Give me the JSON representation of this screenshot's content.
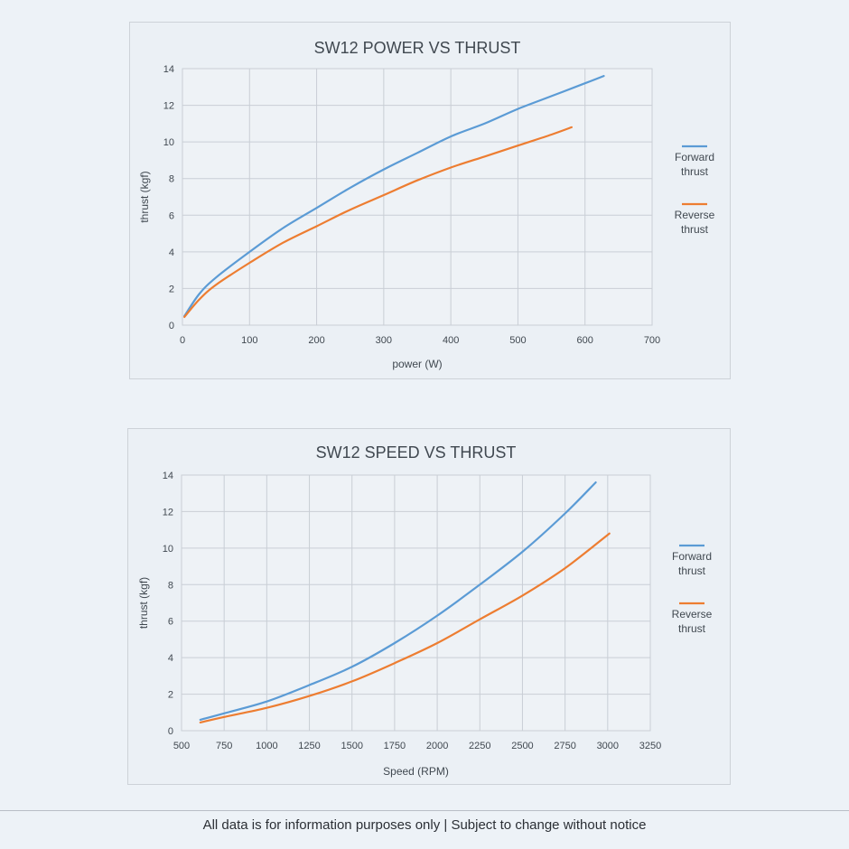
{
  "footer": {
    "disclaimer": "All data is for information purposes only | Subject to change without notice"
  },
  "colors": {
    "forward": "#5b9bd5",
    "reverse": "#ed7d31",
    "grid": "#c9ced5",
    "text": "#404850"
  },
  "chart_data": [
    {
      "type": "line",
      "title": "SW12 POWER VS THRUST",
      "xlabel": "power (W)",
      "ylabel": "thrust (kgf)",
      "xlim": [
        0,
        700
      ],
      "ylim": [
        0,
        14
      ],
      "xticks": [
        0,
        100,
        200,
        300,
        400,
        500,
        600,
        700
      ],
      "yticks": [
        0,
        2,
        4,
        6,
        8,
        10,
        12,
        14
      ],
      "grid": true,
      "legend": "right",
      "series": [
        {
          "name": "Forward thrust",
          "x": [
            3,
            25,
            50,
            100,
            150,
            200,
            250,
            300,
            350,
            400,
            450,
            500,
            550,
            600,
            628
          ],
          "y": [
            0.5,
            1.7,
            2.6,
            4.0,
            5.3,
            6.4,
            7.5,
            8.5,
            9.4,
            10.3,
            11.0,
            11.8,
            12.5,
            13.2,
            13.6
          ]
        },
        {
          "name": "Reverse thrust",
          "x": [
            3,
            25,
            50,
            100,
            150,
            200,
            250,
            300,
            350,
            400,
            450,
            500,
            550,
            580
          ],
          "y": [
            0.45,
            1.4,
            2.2,
            3.4,
            4.5,
            5.4,
            6.3,
            7.1,
            7.9,
            8.6,
            9.2,
            9.8,
            10.4,
            10.8
          ]
        }
      ]
    },
    {
      "type": "line",
      "title": "SW12 SPEED VS THRUST",
      "xlabel": "Speed (RPM)",
      "ylabel": "thrust (kgf)",
      "xlim": [
        500,
        3250
      ],
      "ylim": [
        0,
        14
      ],
      "xticks": [
        500,
        750,
        1000,
        1250,
        1500,
        1750,
        2000,
        2250,
        2500,
        2750,
        3000,
        3250
      ],
      "yticks": [
        0,
        2,
        4,
        6,
        8,
        10,
        12,
        14
      ],
      "grid": true,
      "legend": "right",
      "series": [
        {
          "name": "Forward thrust",
          "x": [
            610,
            750,
            1000,
            1250,
            1500,
            1750,
            2000,
            2250,
            2500,
            2750,
            2930
          ],
          "y": [
            0.6,
            0.95,
            1.6,
            2.5,
            3.5,
            4.8,
            6.3,
            8.0,
            9.8,
            11.9,
            13.6
          ]
        },
        {
          "name": "Reverse thrust",
          "x": [
            610,
            750,
            1000,
            1250,
            1500,
            1750,
            2000,
            2250,
            2500,
            2750,
            3010
          ],
          "y": [
            0.45,
            0.75,
            1.25,
            1.9,
            2.7,
            3.7,
            4.8,
            6.1,
            7.4,
            8.9,
            10.8
          ]
        }
      ]
    }
  ]
}
